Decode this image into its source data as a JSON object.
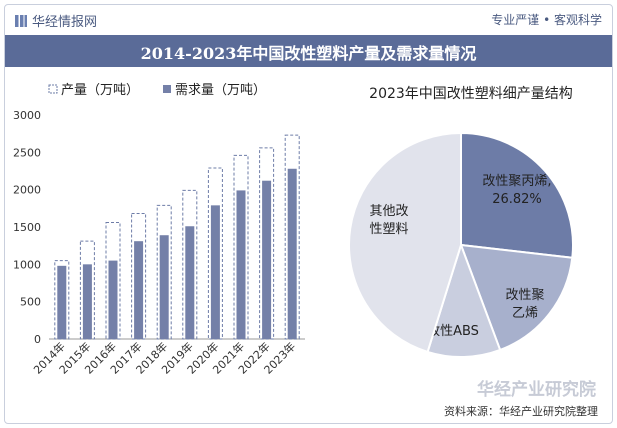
{
  "header": {
    "brand": "华经情报网",
    "slogan": "专业严谨 • 客观科学",
    "title": "2014-2023年中国改性塑料产量及需求量情况"
  },
  "footer": {
    "source": "资料来源：华经产业研究院整理",
    "watermark": "华经产业研究院"
  },
  "colors": {
    "title_bg": "#5a6b98",
    "bar": "#7480a8",
    "pie": [
      "#6d7ca7",
      "#a7b0cc",
      "#c9cedf",
      "#e1e3ec"
    ]
  },
  "chart_data": [
    {
      "type": "bar",
      "title": "",
      "categories": [
        "2014年",
        "2015年",
        "2016年",
        "2017年",
        "2018年",
        "2019年",
        "2020年",
        "2021年",
        "2022年",
        "2023年"
      ],
      "series": [
        {
          "name": "产量（万吨）",
          "values": [
            1050,
            1310,
            1560,
            1680,
            1790,
            1990,
            2290,
            2460,
            2560,
            2730
          ]
        },
        {
          "name": "需求量（万吨）",
          "values": [
            980,
            1000,
            1050,
            1310,
            1390,
            1510,
            1790,
            1990,
            2120,
            2280
          ]
        }
      ],
      "yticks": [
        "0",
        "500",
        "1000",
        "1500",
        "2000",
        "2500",
        "3000"
      ],
      "ylim": [
        0,
        3000
      ],
      "legend": "top-left",
      "grid": false
    },
    {
      "type": "pie",
      "title": "2023年中国改性塑料细产量结构",
      "slices": [
        {
          "label": "改性聚丙烯,",
          "label2": "26.82%",
          "value": 26.82
        },
        {
          "label": "改性聚",
          "label2": "乙烯",
          "value": 17.5
        },
        {
          "label": "改性ABS",
          "label2": "",
          "value": 10.5
        },
        {
          "label": "其他改",
          "label2": "性塑料",
          "value": 45.18
        }
      ]
    }
  ]
}
